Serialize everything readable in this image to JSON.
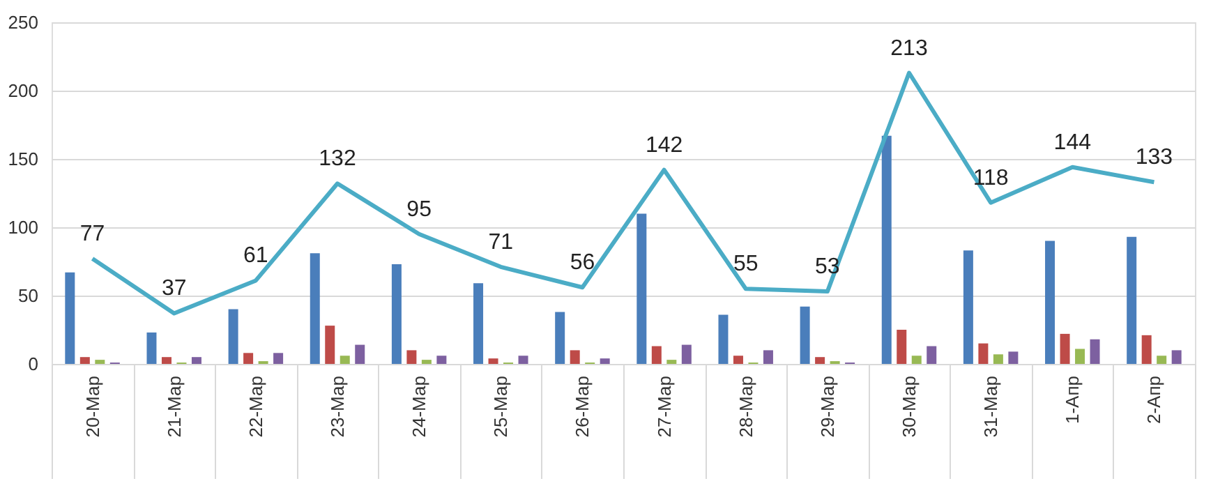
{
  "chart_data": {
    "type": "bar",
    "categories": [
      "20-Мар",
      "21-Мар",
      "22-Мар",
      "23-Мар",
      "24-Мар",
      "25-Мар",
      "26-Мар",
      "27-Мар",
      "28-Мар",
      "29-Мар",
      "30-Мар",
      "31-Мар",
      "1-Апр",
      "2-Апр"
    ],
    "series": [
      {
        "color": "#4a7ebb",
        "values": [
          67,
          23,
          40,
          81,
          73,
          59,
          38,
          110,
          36,
          42,
          167,
          83,
          90,
          93
        ]
      },
      {
        "color": "#be4b48",
        "values": [
          5,
          5,
          8,
          28,
          10,
          4,
          10,
          13,
          6,
          5,
          25,
          15,
          22,
          21
        ]
      },
      {
        "color": "#98b954",
        "values": [
          3,
          1,
          2,
          6,
          3,
          1,
          1,
          3,
          1,
          2,
          6,
          7,
          11,
          6
        ]
      },
      {
        "color": "#7d60a0",
        "values": [
          1,
          5,
          8,
          14,
          6,
          6,
          4,
          14,
          10,
          1,
          13,
          9,
          18,
          10
        ]
      },
      {
        "type": "line",
        "color": "#4bacc6",
        "values": [
          77,
          37,
          61,
          132,
          95,
          71,
          56,
          142,
          55,
          53,
          213,
          118,
          144,
          133
        ],
        "value_labels": [
          "77",
          "37",
          "61",
          "132",
          "95",
          "71",
          "56",
          "142",
          "55",
          "53",
          "213",
          "118",
          "144",
          "133"
        ]
      }
    ],
    "ylim": [
      0,
      250
    ],
    "yticks": [
      0,
      50,
      100,
      150,
      200,
      250
    ],
    "grid": "y",
    "legend": false
  }
}
